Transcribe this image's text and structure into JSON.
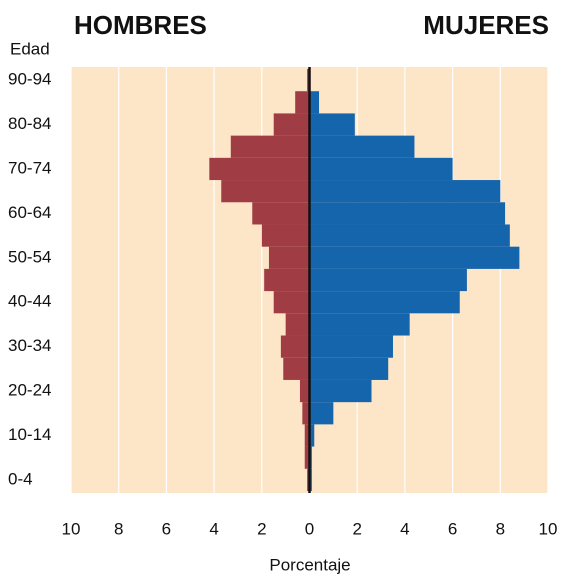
{
  "chart_data": {
    "type": "pyramid",
    "y_label": "Edad",
    "x_label": "Porcentaje",
    "categories": [
      "0-4",
      null,
      "10-14",
      null,
      "20-24",
      null,
      "30-34",
      null,
      "40-44",
      null,
      "50-54",
      null,
      "60-64",
      null,
      "70-74",
      null,
      "80-84",
      null,
      "90-94"
    ],
    "series": [
      {
        "name": "HOMBRES",
        "color": "#a03c44",
        "side": "left",
        "values": [
          0.1,
          0.2,
          0.2,
          0.3,
          0.4,
          1.1,
          1.2,
          1.0,
          1.5,
          1.9,
          1.7,
          2.0,
          2.4,
          3.7,
          4.2,
          3.3,
          1.5,
          0.6,
          0.1
        ]
      },
      {
        "name": "MUJERES",
        "color": "#1565ad",
        "side": "right",
        "values": [
          0.1,
          0.1,
          0.2,
          1.0,
          2.6,
          3.3,
          3.5,
          4.2,
          6.3,
          6.6,
          8.8,
          8.4,
          8.2,
          8.0,
          6.0,
          4.4,
          1.9,
          0.4,
          0
        ]
      }
    ],
    "xlim": [
      -10,
      10
    ],
    "xticks": [
      {
        "value": -10,
        "label": "10"
      },
      {
        "value": -8,
        "label": "8"
      },
      {
        "value": -6,
        "label": "6"
      },
      {
        "value": -4,
        "label": "4"
      },
      {
        "value": -2,
        "label": "2"
      },
      0,
      2,
      4,
      6,
      8,
      10
    ],
    "grid": true,
    "background": "#fde5c8"
  }
}
